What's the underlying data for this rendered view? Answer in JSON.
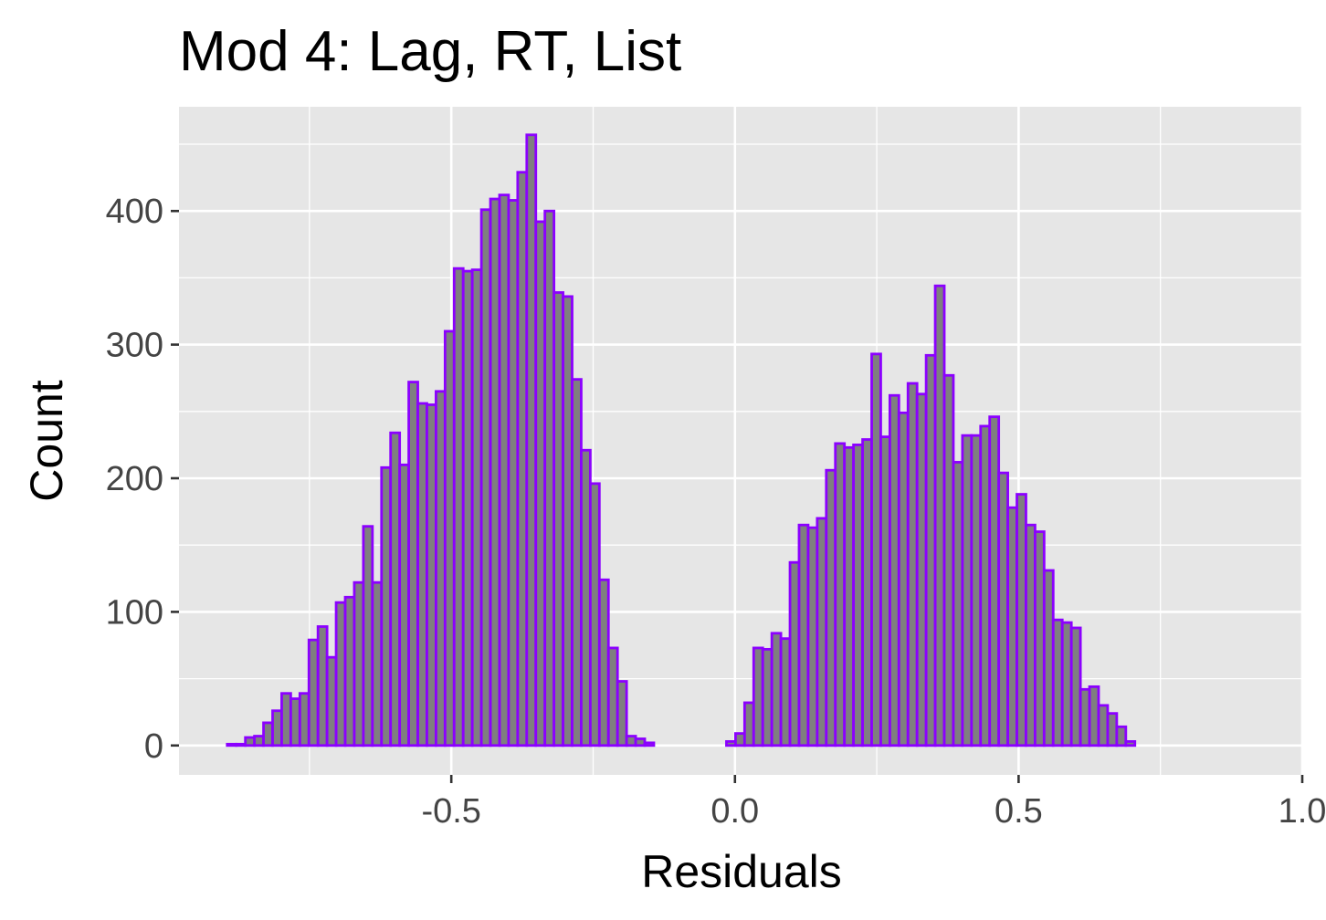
{
  "chart_data": {
    "type": "bar",
    "title": "Mod 4: Lag, RT, List",
    "xlabel": "Residuals",
    "ylabel": "Count",
    "xlim": [
      -0.98,
      1.0
    ],
    "ylim": [
      -22,
      478
    ],
    "x_ticks": [
      -0.5,
      0.0,
      0.5,
      1.0
    ],
    "x_tick_labels": [
      "-0.5",
      "0.0",
      "0.5",
      "1.0"
    ],
    "y_ticks": [
      0,
      100,
      200,
      300,
      400
    ],
    "y_tick_labels": [
      "0",
      "100",
      "200",
      "300",
      "400"
    ],
    "x_minor_ticks": [
      -0.75,
      -0.25,
      0.25,
      0.75
    ],
    "y_minor_ticks": [
      50,
      150,
      250,
      350,
      450
    ],
    "grid": true,
    "panel_color": "#e6e6e6",
    "grid_color": "#ffffff",
    "bar_fill": "#7f7f7f",
    "bar_outline": "#8b00ff",
    "bin_width": 0.016,
    "bins_start": -0.895,
    "values": [
      1,
      1,
      6,
      7,
      17,
      26,
      39,
      35,
      39,
      79,
      89,
      66,
      107,
      111,
      122,
      164,
      122,
      208,
      234,
      210,
      272,
      256,
      255,
      265,
      310,
      357,
      355,
      356,
      401,
      409,
      412,
      408,
      429,
      457,
      392,
      400,
      339,
      336,
      274,
      221,
      196,
      124,
      73,
      48,
      7,
      5,
      2,
      0,
      0,
      0,
      0,
      0,
      0,
      0,
      0,
      3,
      9,
      32,
      73,
      72,
      84,
      80,
      137,
      165,
      163,
      170,
      206,
      226,
      223,
      225,
      229,
      293,
      231,
      262,
      249,
      271,
      263,
      292,
      344,
      277,
      212,
      232,
      232,
      239,
      246,
      204,
      178,
      188,
      165,
      160,
      131,
      94,
      92,
      88,
      42,
      44,
      30,
      24,
      14,
      3
    ]
  }
}
